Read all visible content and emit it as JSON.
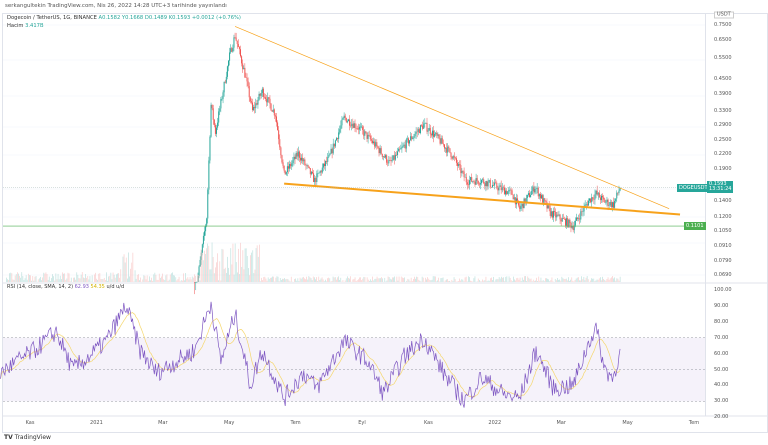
{
  "published": "serkangultekin TradingView.com, Nis 26, 2022 14:28 UTC+3 tarihinde yayınlandı",
  "legend": {
    "symbol": "Dogecoin / TetherUS, 1G, BINANCE",
    "open": "A0.1582",
    "high": "Y0.1668",
    "low": "D0.1489",
    "close": "K0.1593",
    "change": "+0.0012 (+0.76%)",
    "volume_label": "Hacim",
    "volume": "3.417B"
  },
  "rsi_legend": {
    "label": "RSI (14, close, SMA, 14, 2)",
    "rsi": "62.93",
    "ma": "54.35",
    "extra": "u/d u/d"
  },
  "currency": "USDT",
  "price_badge": {
    "symbol": "DOGEUSDT",
    "price": "0.1593",
    "countdown": "13:31:24"
  },
  "level_badge": "0.1101",
  "colors": {
    "up": "#26a69a",
    "down": "#ef5350",
    "rsi": "#7e57c2",
    "rsi_ma": "#f5d76e",
    "trendline": "#f7a21b",
    "level": "#4caf50"
  },
  "footer": "TradingView",
  "chart_data": [
    {
      "type": "candlestick",
      "title": "Dogecoin / TetherUS, 1G, BINANCE",
      "y_scale": "log",
      "ylim": [
        0.069,
        0.76
      ],
      "y_ticks": [
        "0.7500",
        "0.6500",
        "0.5500",
        "0.4500",
        "0.3900",
        "0.3300",
        "0.2900",
        "0.2500",
        "0.2200",
        "0.1900",
        "0.1400",
        "0.1200",
        "0.1050",
        "0.0910",
        "0.0790",
        "0.0690"
      ],
      "x_ticks": [
        "Kas",
        "2021",
        "Mar",
        "May",
        "Tem",
        "Eyl",
        "Kas",
        "2022",
        "Mar",
        "May",
        "Tem"
      ],
      "close_series": [
        [
          "2021-04-01",
          0.055
        ],
        [
          "2021-04-12",
          0.12
        ],
        [
          "2021-04-16",
          0.35
        ],
        [
          "2021-04-20",
          0.27
        ],
        [
          "2021-05-03",
          0.56
        ],
        [
          "2021-05-08",
          0.68
        ],
        [
          "2021-05-17",
          0.47
        ],
        [
          "2021-05-24",
          0.33
        ],
        [
          "2021-06-02",
          0.4
        ],
        [
          "2021-06-14",
          0.32
        ],
        [
          "2021-06-22",
          0.18
        ],
        [
          "2021-07-05",
          0.22
        ],
        [
          "2021-07-20",
          0.17
        ],
        [
          "2021-08-02",
          0.21
        ],
        [
          "2021-08-16",
          0.31
        ],
        [
          "2021-08-30",
          0.28
        ],
        [
          "2021-09-13",
          0.24
        ],
        [
          "2021-09-27",
          0.2
        ],
        [
          "2021-10-11",
          0.24
        ],
        [
          "2021-10-28",
          0.29
        ],
        [
          "2021-11-08",
          0.26
        ],
        [
          "2021-11-22",
          0.22
        ],
        [
          "2021-12-06",
          0.17
        ],
        [
          "2021-12-20",
          0.17
        ],
        [
          "2022-01-03",
          0.16
        ],
        [
          "2022-01-17",
          0.15
        ],
        [
          "2022-01-24",
          0.13
        ],
        [
          "2022-02-07",
          0.16
        ],
        [
          "2022-02-21",
          0.125
        ],
        [
          "2022-03-07",
          0.115
        ],
        [
          "2022-03-14",
          0.11
        ],
        [
          "2022-03-28",
          0.14
        ],
        [
          "2022-04-04",
          0.15
        ],
        [
          "2022-04-11",
          0.14
        ],
        [
          "2022-04-20",
          0.135
        ],
        [
          "2022-04-26",
          0.1593
        ]
      ],
      "trendlines": [
        {
          "from": [
            "2021-05-08",
            0.74
          ],
          "to": [
            "2022-06-10",
            0.13
          ]
        },
        {
          "from": [
            "2021-06-22",
            0.165
          ],
          "to": [
            "2022-06-20",
            0.123
          ]
        }
      ],
      "horizontal_levels": [
        0.1101,
        0.1593
      ]
    },
    {
      "type": "line",
      "title": "RSI (14, close, SMA, 14, 2)",
      "ylim": [
        20,
        100
      ],
      "y_ticks": [
        "100.00",
        "90.00",
        "80.00",
        "70.00",
        "60.00",
        "50.00",
        "40.00",
        "30.00",
        "20.00"
      ],
      "band": [
        30,
        70
      ],
      "midline": 50,
      "series": [
        {
          "values": [
            [
              "2020-10-05",
              48
            ],
            [
              "2020-10-20",
              55
            ],
            [
              "2020-11-05",
              62
            ],
            [
              "2020-11-25",
              74
            ],
            [
              "2020-12-10",
              50
            ],
            [
              "2020-12-25",
              58
            ],
            [
              "2021-01-10",
              68
            ],
            [
              "2021-01-28",
              90
            ],
            [
              "2021-02-10",
              62
            ],
            [
              "2021-02-25",
              48
            ],
            [
              "2021-03-15",
              55
            ],
            [
              "2021-04-01",
              62
            ],
            [
              "2021-04-16",
              92
            ],
            [
              "2021-04-25",
              55
            ],
            [
              "2021-05-08",
              85
            ],
            [
              "2021-05-22",
              40
            ],
            [
              "2021-06-02",
              62
            ],
            [
              "2021-06-22",
              32
            ],
            [
              "2021-07-10",
              48
            ],
            [
              "2021-07-22",
              38
            ],
            [
              "2021-08-16",
              68
            ],
            [
              "2021-09-07",
              55
            ],
            [
              "2021-09-21",
              35
            ],
            [
              "2021-10-10",
              58
            ],
            [
              "2021-10-28",
              70
            ],
            [
              "2021-11-15",
              48
            ],
            [
              "2021-12-04",
              30
            ],
            [
              "2021-12-20",
              45
            ],
            [
              "2022-01-10",
              34
            ],
            [
              "2022-01-24",
              32
            ],
            [
              "2022-02-08",
              62
            ],
            [
              "2022-02-24",
              38
            ],
            [
              "2022-03-14",
              40
            ],
            [
              "2022-03-30",
              70
            ],
            [
              "2022-04-04",
              76
            ],
            [
              "2022-04-12",
              50
            ],
            [
              "2022-04-20",
              45
            ],
            [
              "2022-04-26",
              62.93
            ]
          ]
        }
      ]
    }
  ]
}
